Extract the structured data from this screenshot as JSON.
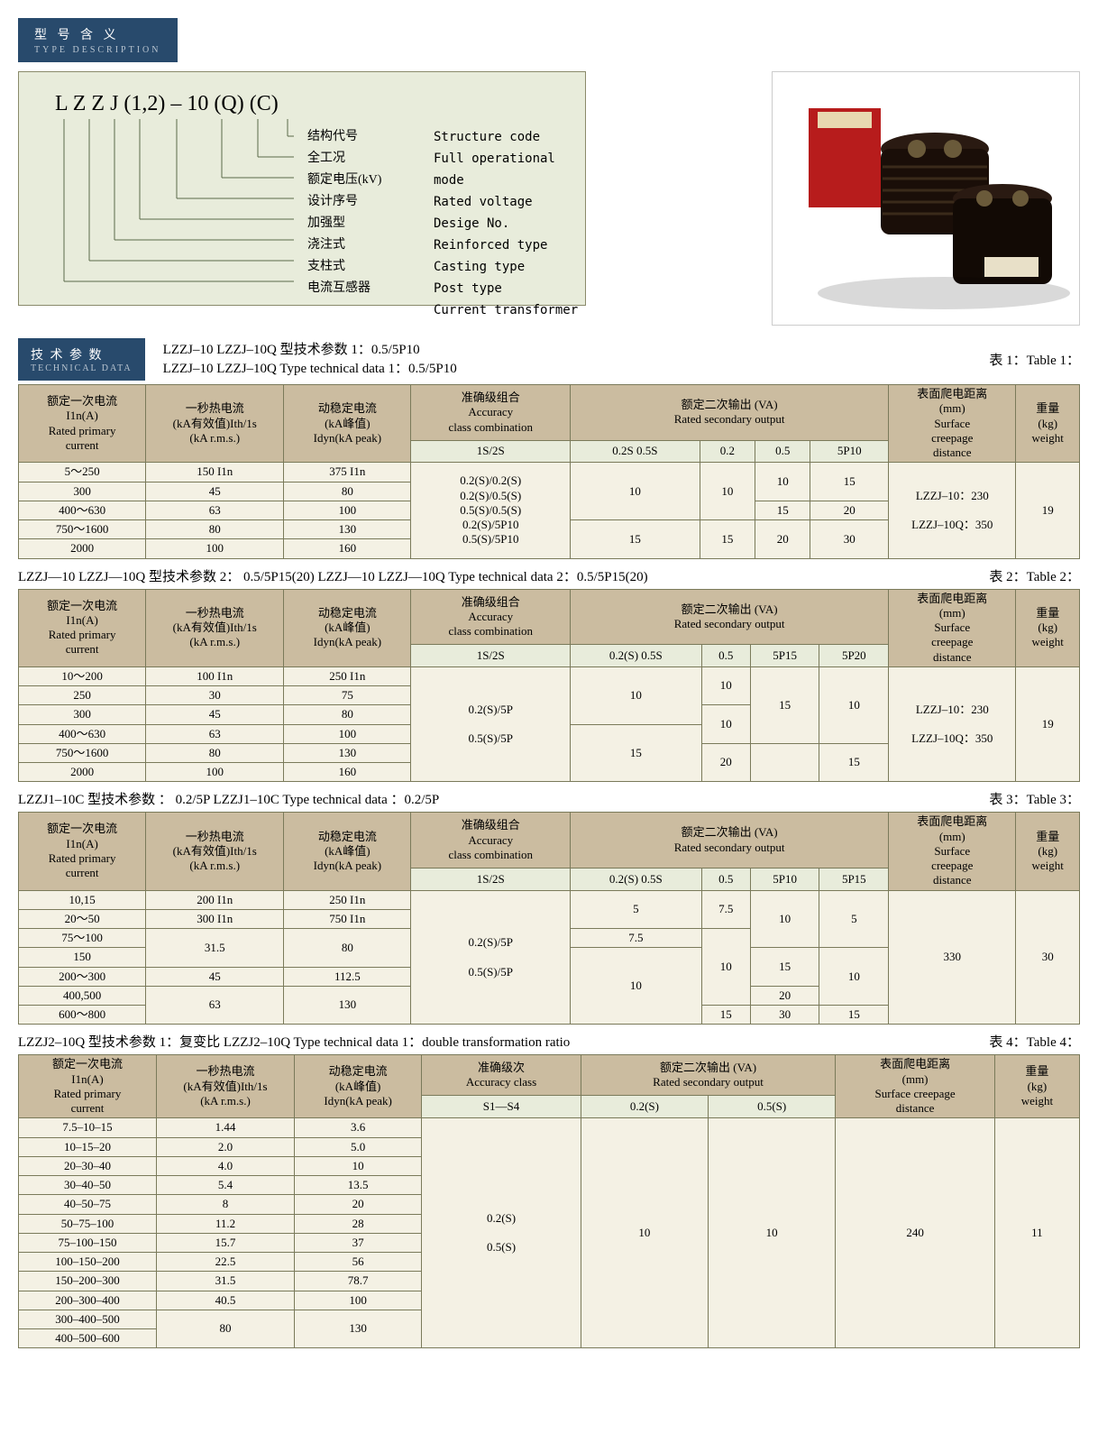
{
  "typeDesc": {
    "header_cn": "型 号 含 义",
    "header_en": "TYPE DESCRIPTION",
    "model": "L   Z   Z   J  (1,2)  –  10   (Q)   (C)",
    "labels_cn": [
      "结构代号",
      "全工况",
      "额定电压(kV)",
      "设计序号",
      "加强型",
      "浇注式",
      "支柱式",
      "电流互感器"
    ],
    "labels_en": [
      "Structure code",
      "Full operational mode",
      "Rated voltage",
      "Desige No.",
      "Reinforced type",
      "Casting type",
      "Post type",
      "Current transformer"
    ]
  },
  "techHeader": {
    "cn": "技 术 参 数",
    "en": "TECHNICAL DATA"
  },
  "captions": {
    "t1": {
      "l1": "LZZJ–10  LZZJ–10Q 型技术参数 1：0.5/5P10",
      "l2": "LZZJ–10  LZZJ–10Q  Type technical data 1：0.5/5P10",
      "right": "表 1：Table 1："
    },
    "t2": {
      "l": "LZZJ—10  LZZJ—10Q 型技术参数 2： 0.5/5P15(20)   LZZJ—10  LZZJ—10Q Type technical data 2：0.5/5P15(20)",
      "right": "表 2：Table 2："
    },
    "t3": {
      "l": "LZZJ1–10C 型技术参数 ：  0.2/5P  LZZJ1–10C Type technical data ：0.2/5P",
      "right": "表 3：Table 3："
    },
    "t4": {
      "l": "LZZJ2–10Q 型技术参数 1：复变比   LZZJ2–10Q Type technical data 1：double transformation ratio",
      "right": "表 4：Table 4："
    }
  },
  "headers": {
    "col1": "额定一次电流\nI1n(A)\nRated primary\ncurrent",
    "col2": "一秒热电流\n(kA有效值)Ith/1s\n(kA r.m.s.)",
    "col3": "动稳定电流\n(kA峰值)\nIdyn(kA peak)",
    "col4": "准确级组合\nAccuracy\nclass combination",
    "col4b": "准确级次\nAccuracy class",
    "col5": "额定二次输出 (VA)\nRated secondary output",
    "col6": "表面爬电距离\n(mm)\nSurface\ncreepage\ndistance",
    "col6b": "表面爬电距离\n(mm)\nSurface creepage\ndistance",
    "col7": "重量\n(kg)\nweight",
    "sub_1s2s": "1S/2S",
    "sub_s1s4": "S1—S4"
  },
  "t1": {
    "sub": [
      "0.2S   0.5S",
      "0.2",
      "0.5",
      "5P10"
    ],
    "acc": "0.2(S)/0.2(S)\n0.2(S)/0.5(S)\n0.5(S)/0.5(S)\n0.2(S)/5P10\n0.5(S)/5P10",
    "creepage": "LZZJ–10：230\n\nLZZJ–10Q：350",
    "weight": "19",
    "rows": [
      {
        "c1": "5～250",
        "c2": "150 I1n",
        "c3": "375 I1n",
        "v02s": "10",
        "v02": "10",
        "v05": "10",
        "v5p": "15"
      },
      {
        "c1": "300",
        "c2": "45",
        "c3": "80"
      },
      {
        "c1": "400～630",
        "c2": "63",
        "c3": "100",
        "v05": "15",
        "v5p": "20"
      },
      {
        "c1": "750～1600",
        "c2": "80",
        "c3": "130",
        "v02s": "15",
        "v02": "15",
        "v05": "20",
        "v5p": "30"
      },
      {
        "c1": "2000",
        "c2": "100",
        "c3": "160"
      }
    ]
  },
  "t2": {
    "sub": [
      "0.2(S)  0.5S",
      "0.5",
      "5P15",
      "5P20"
    ],
    "acc": "0.2(S)/5P\n\n0.5(S)/5P",
    "creepage": "LZZJ–10：230\n\nLZZJ–10Q：350",
    "weight": "19",
    "rows": [
      {
        "c1": "10～200",
        "c2": "100 I1n",
        "c3": "250 I1n"
      },
      {
        "c1": "250",
        "c2": "30",
        "c3": "75"
      },
      {
        "c1": "300",
        "c2": "45",
        "c3": "80"
      },
      {
        "c1": "400～630",
        "c2": "63",
        "c3": "100"
      },
      {
        "c1": "750～1600",
        "c2": "80",
        "c3": "130"
      },
      {
        "c1": "2000",
        "c2": "100",
        "c3": "160"
      }
    ],
    "sec": {
      "a": [
        "10",
        "10",
        "10",
        "15",
        "10"
      ],
      "b": [
        "15",
        "15",
        "20",
        "",
        "15"
      ]
    }
  },
  "t3": {
    "sub": [
      "0.2(S)  0.5S",
      "0.5",
      "5P10",
      "5P15"
    ],
    "acc": "0.2(S)/5P\n\n0.5(S)/5P",
    "creepage": "330",
    "weight": "30",
    "rows": [
      {
        "c1": "10,15",
        "c2": "200 I1n",
        "c3": "250 I1n"
      },
      {
        "c1": "20～50",
        "c2": "300 I1n",
        "c3": "750 I1n"
      },
      {
        "c1": "75～100",
        "c2": "31.5",
        "c3": "80"
      },
      {
        "c1": "150"
      },
      {
        "c1": "200～300",
        "c2": "45",
        "c3": "112.5"
      },
      {
        "c1": "400,500",
        "c2": "63",
        "c3": "130"
      },
      {
        "c1": "600～800"
      }
    ]
  },
  "t4": {
    "sub": [
      "0.2(S)",
      "0.5(S)"
    ],
    "acc": "0.2(S)\n\n0.5(S)",
    "creepage": "240",
    "weight": "11",
    "sec1": "10",
    "sec2": "10",
    "rows": [
      {
        "c1": "7.5–10–15",
        "c2": "1.44",
        "c3": "3.6"
      },
      {
        "c1": "10–15–20",
        "c2": "2.0",
        "c3": "5.0"
      },
      {
        "c1": "20–30–40",
        "c2": "4.0",
        "c3": "10"
      },
      {
        "c1": "30–40–50",
        "c2": "5.4",
        "c3": "13.5"
      },
      {
        "c1": "40–50–75",
        "c2": "8",
        "c3": "20"
      },
      {
        "c1": "50–75–100",
        "c2": "11.2",
        "c3": "28"
      },
      {
        "c1": "75–100–150",
        "c2": "15.7",
        "c3": "37"
      },
      {
        "c1": "100–150–200",
        "c2": "22.5",
        "c3": "56"
      },
      {
        "c1": "150–200–300",
        "c2": "31.5",
        "c3": "78.7"
      },
      {
        "c1": "200–300–400",
        "c2": "40.5",
        "c3": "100"
      },
      {
        "c1": "300–400–500",
        "c2": "80",
        "c3": "130"
      },
      {
        "c1": "400–500–600"
      }
    ]
  },
  "colors": {
    "header_bg": "#cbbca0",
    "sub_bg": "#e8ecdb",
    "cell_bg": "#f4f1e4"
  }
}
